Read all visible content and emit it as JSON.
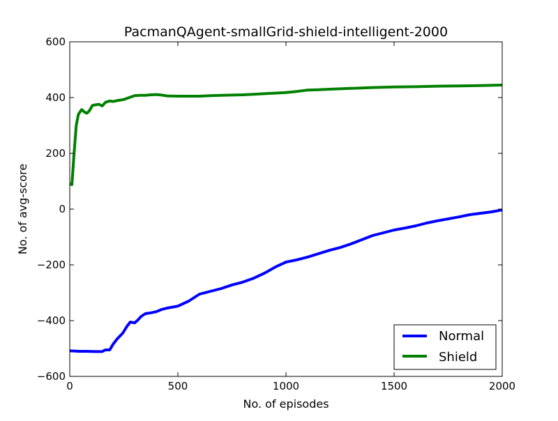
{
  "chart_data": {
    "type": "line",
    "title": "PacmanQAgent-smallGrid-shield-intelligent-2000",
    "xlabel": "No. of episodes",
    "ylabel": "No. of avg-score",
    "xlim": [
      0,
      2000
    ],
    "ylim": [
      -600,
      600
    ],
    "x_ticks": [
      0,
      500,
      1000,
      1500,
      2000
    ],
    "y_ticks": [
      -600,
      -400,
      -200,
      0,
      200,
      400,
      600
    ],
    "x_tick_labels": [
      "0",
      "500",
      "1000",
      "1500",
      "2000"
    ],
    "y_tick_labels": [
      "−600",
      "−400",
      "−200",
      "0",
      "200",
      "400",
      "600"
    ],
    "grid": false,
    "legend": {
      "position": "lower-right",
      "entries": [
        "Normal",
        "Shield"
      ]
    },
    "series": [
      {
        "name": "Normal",
        "color": "#0000ff",
        "points": [
          [
            0,
            -508
          ],
          [
            40,
            -510
          ],
          [
            80,
            -510
          ],
          [
            120,
            -511
          ],
          [
            150,
            -511
          ],
          [
            165,
            -505
          ],
          [
            185,
            -505
          ],
          [
            200,
            -485
          ],
          [
            220,
            -465
          ],
          [
            245,
            -445
          ],
          [
            265,
            -420
          ],
          [
            280,
            -405
          ],
          [
            300,
            -408
          ],
          [
            315,
            -398
          ],
          [
            330,
            -385
          ],
          [
            350,
            -375
          ],
          [
            375,
            -372
          ],
          [
            400,
            -368
          ],
          [
            425,
            -360
          ],
          [
            450,
            -355
          ],
          [
            500,
            -348
          ],
          [
            550,
            -330
          ],
          [
            600,
            -305
          ],
          [
            650,
            -295
          ],
          [
            700,
            -285
          ],
          [
            750,
            -272
          ],
          [
            800,
            -262
          ],
          [
            850,
            -248
          ],
          [
            900,
            -230
          ],
          [
            950,
            -208
          ],
          [
            1000,
            -190
          ],
          [
            1050,
            -182
          ],
          [
            1100,
            -172
          ],
          [
            1150,
            -160
          ],
          [
            1200,
            -148
          ],
          [
            1250,
            -138
          ],
          [
            1300,
            -125
          ],
          [
            1350,
            -110
          ],
          [
            1400,
            -95
          ],
          [
            1450,
            -85
          ],
          [
            1500,
            -75
          ],
          [
            1550,
            -68
          ],
          [
            1600,
            -60
          ],
          [
            1650,
            -50
          ],
          [
            1700,
            -42
          ],
          [
            1750,
            -35
          ],
          [
            1800,
            -28
          ],
          [
            1850,
            -20
          ],
          [
            1900,
            -15
          ],
          [
            1950,
            -10
          ],
          [
            2000,
            -3
          ]
        ]
      },
      {
        "name": "Shield",
        "color": "#008000",
        "points": [
          [
            0,
            90
          ],
          [
            10,
            88
          ],
          [
            20,
            200
          ],
          [
            30,
            300
          ],
          [
            40,
            340
          ],
          [
            55,
            357
          ],
          [
            70,
            347
          ],
          [
            80,
            344
          ],
          [
            90,
            352
          ],
          [
            105,
            372
          ],
          [
            120,
            374
          ],
          [
            135,
            376
          ],
          [
            150,
            370
          ],
          [
            165,
            383
          ],
          [
            185,
            388
          ],
          [
            200,
            386
          ],
          [
            225,
            390
          ],
          [
            250,
            393
          ],
          [
            275,
            400
          ],
          [
            300,
            407
          ],
          [
            325,
            408
          ],
          [
            350,
            408
          ],
          [
            375,
            410
          ],
          [
            400,
            411
          ],
          [
            425,
            409
          ],
          [
            450,
            406
          ],
          [
            500,
            405
          ],
          [
            550,
            405
          ],
          [
            600,
            405
          ],
          [
            650,
            407
          ],
          [
            700,
            408
          ],
          [
            750,
            409
          ],
          [
            800,
            410
          ],
          [
            850,
            412
          ],
          [
            900,
            414
          ],
          [
            950,
            416
          ],
          [
            1000,
            418
          ],
          [
            1050,
            422
          ],
          [
            1100,
            427
          ],
          [
            1150,
            428
          ],
          [
            1200,
            430
          ],
          [
            1300,
            433
          ],
          [
            1400,
            436
          ],
          [
            1500,
            438
          ],
          [
            1600,
            439
          ],
          [
            1700,
            441
          ],
          [
            1800,
            442
          ],
          [
            1900,
            443
          ],
          [
            2000,
            445
          ]
        ]
      }
    ]
  }
}
